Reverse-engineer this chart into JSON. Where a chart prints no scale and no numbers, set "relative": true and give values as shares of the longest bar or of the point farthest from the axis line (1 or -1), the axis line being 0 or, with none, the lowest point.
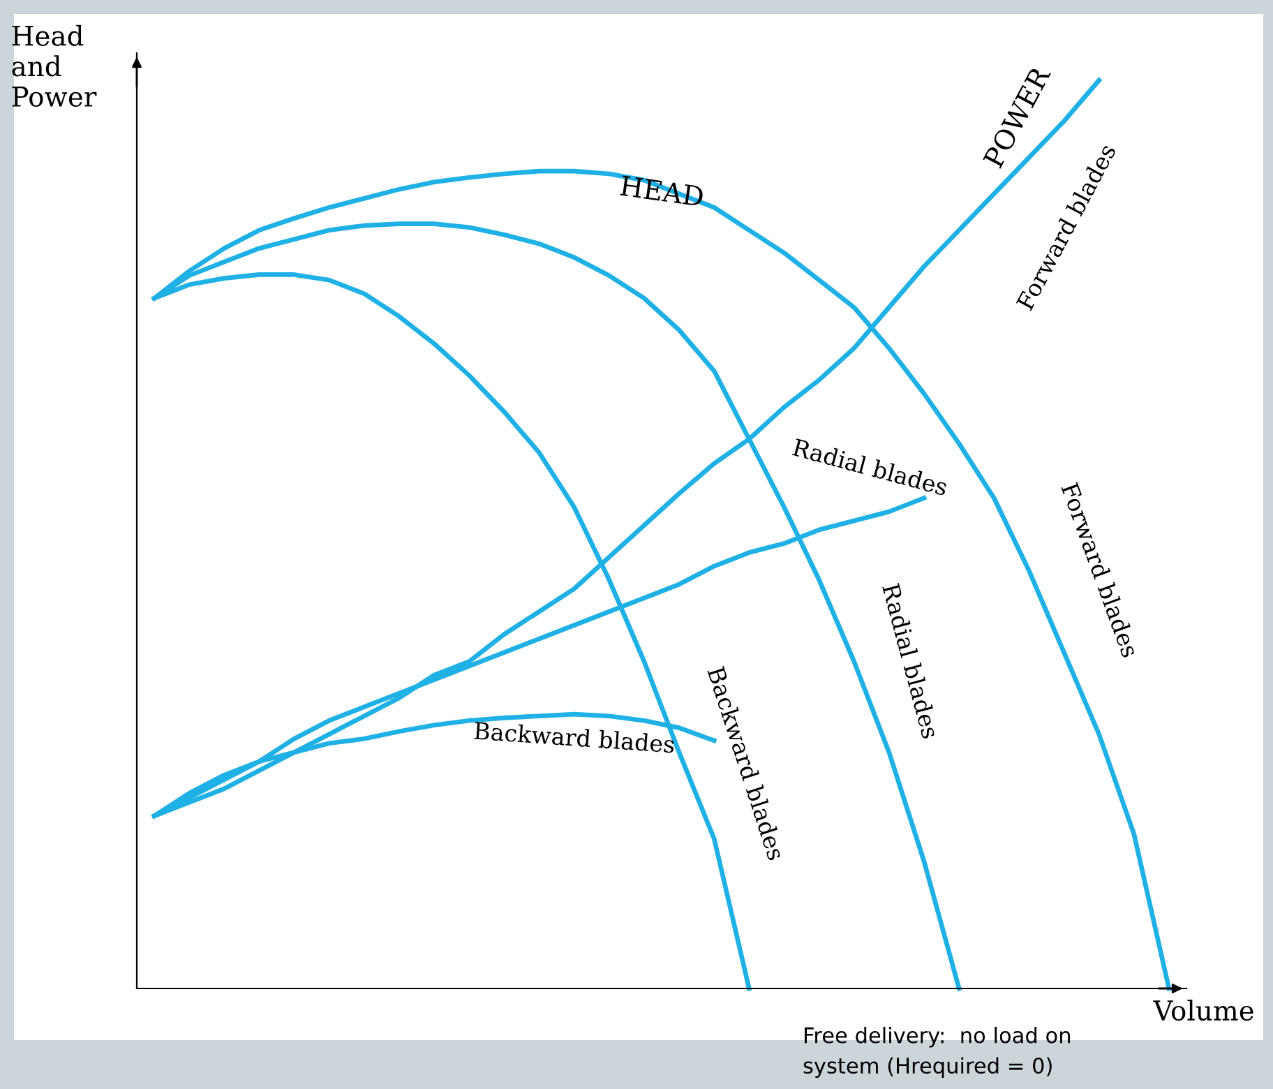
{
  "chart_data": {
    "type": "line",
    "relative": true,
    "xlabel": "Volume",
    "ylabel": "Head\nand\nPower",
    "legend": false,
    "marker": "none",
    "line_style": "solid",
    "categories": [
      null,
      null,
      null,
      null,
      null,
      null,
      null,
      null,
      null,
      null,
      null,
      null,
      null,
      null,
      null,
      null,
      null,
      null,
      null,
      null,
      null,
      null,
      null,
      null,
      null,
      null,
      null,
      null,
      null,
      null
    ],
    "series": [
      {
        "name": "Forward blades",
        "color": "#1fb0e6",
        "values": [
          0.76,
          0.79,
          0.815,
          0.835,
          0.848,
          0.86,
          0.87,
          0.88,
          0.888,
          0.893,
          0.897,
          0.9,
          0.9,
          0.897,
          0.89,
          0.875,
          0.86,
          0.835,
          0.81,
          0.78,
          0.75,
          0.705,
          0.655,
          0.6,
          0.54,
          0.46,
          0.37,
          0.28,
          0.17,
          0
        ]
      },
      {
        "name": "Radial blades",
        "color": "#1fb0e6",
        "values": [
          0.76,
          0.785,
          0.8,
          0.815,
          0.825,
          0.835,
          0.84,
          0.842,
          0.842,
          0.838,
          0.83,
          0.82,
          0.805,
          0.785,
          0.76,
          0.725,
          0.68,
          0.605,
          0.53,
          0.45,
          0.36,
          0.26,
          0.14,
          0,
          null,
          null,
          null,
          null,
          null,
          null
        ]
      },
      {
        "name": "Backward blades",
        "color": "#1fb0e6",
        "values": [
          0.76,
          0.775,
          0.782,
          0.786,
          0.786,
          0.78,
          0.765,
          0.74,
          0.71,
          0.675,
          0.635,
          0.59,
          0.53,
          0.45,
          0.36,
          0.26,
          0.165,
          0,
          null,
          null,
          null,
          null,
          null,
          null,
          null,
          null,
          null,
          null,
          null,
          null
        ]
      },
      {
        "name": "Forward blades",
        "color": "#1fb0e6",
        "values": [
          0.19,
          0.205,
          0.22,
          0.24,
          0.26,
          0.28,
          0.3,
          0.32,
          0.345,
          0.36,
          0.39,
          0.415,
          0.44,
          0.475,
          0.51,
          0.545,
          0.578,
          0.605,
          0.64,
          0.67,
          0.705,
          0.75,
          0.795,
          0.835,
          0.875,
          0.915,
          0.955,
          1,
          null,
          null
        ]
      },
      {
        "name": "Radial blades",
        "color": "#1fb0e6",
        "values": [
          0.19,
          0.21,
          0.23,
          0.25,
          0.275,
          0.295,
          0.31,
          0.325,
          0.34,
          0.355,
          0.37,
          0.385,
          0.4,
          0.415,
          0.43,
          0.445,
          0.465,
          0.48,
          0.49,
          0.505,
          0.515,
          0.525,
          0.54,
          null,
          null,
          null,
          null,
          null,
          null,
          null
        ]
      },
      {
        "name": "Backward blades",
        "color": "#1fb0e6",
        "values": [
          0.19,
          0.215,
          0.235,
          0.25,
          0.26,
          0.27,
          0.275,
          0.283,
          0.29,
          0.295,
          0.298,
          0.3,
          0.302,
          0.3,
          0.295,
          0.287,
          0.273,
          null,
          null,
          null,
          null,
          null,
          null,
          null,
          null,
          null,
          null,
          null,
          null,
          null
        ]
      }
    ],
    "annotations": [
      "HEAD",
      "POWER",
      "Free delivery:  no load on\nsystem (Hrequired = 0)"
    ]
  }
}
